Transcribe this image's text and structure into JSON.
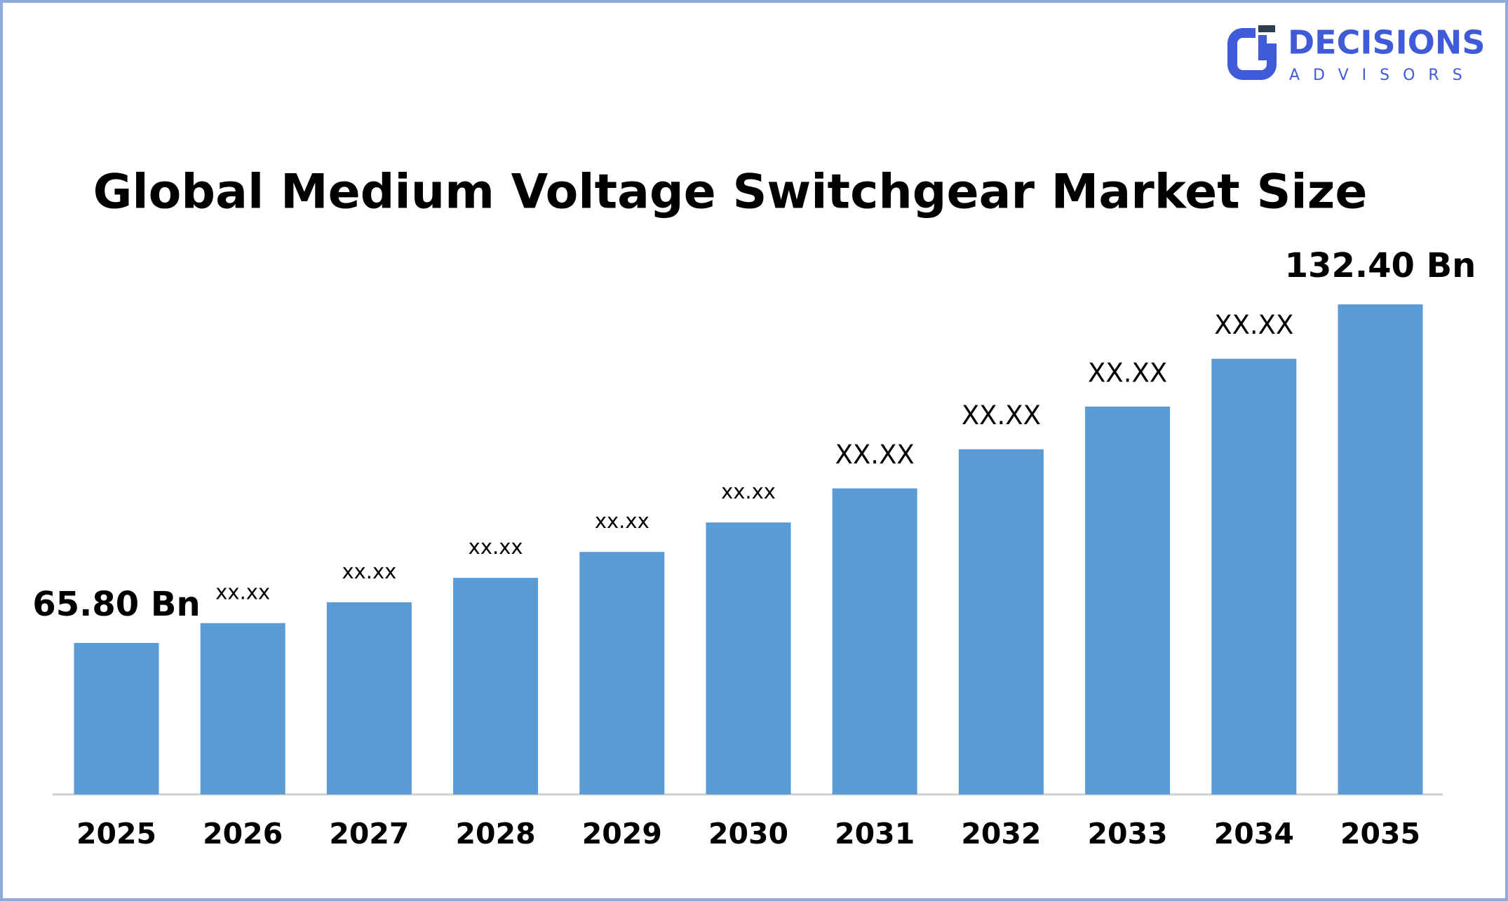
{
  "brand": {
    "name": "DECISIONS",
    "tagline": "ADVISORS"
  },
  "chart_data": {
    "type": "bar",
    "title": "Global Medium Voltage Switchgear Market Size",
    "categories": [
      "2025",
      "2026",
      "2027",
      "2028",
      "2029",
      "2030",
      "2031",
      "2032",
      "2033",
      "2034",
      "2035"
    ],
    "values": [
      65.8,
      69.7,
      73.8,
      78.6,
      83.7,
      89.5,
      96.2,
      103.9,
      112.3,
      121.7,
      132.4
    ],
    "value_labels": [
      "65.80 Bn",
      "xx.xx",
      "xx.xx",
      "xx.xx",
      "xx.xx",
      "xx.xx",
      "XX.XX",
      "XX.XX",
      "XX.XX",
      "XX.XX",
      "132.40 Bn"
    ],
    "color": "#5b9bd5",
    "ylim": [
      36,
      140
    ]
  }
}
